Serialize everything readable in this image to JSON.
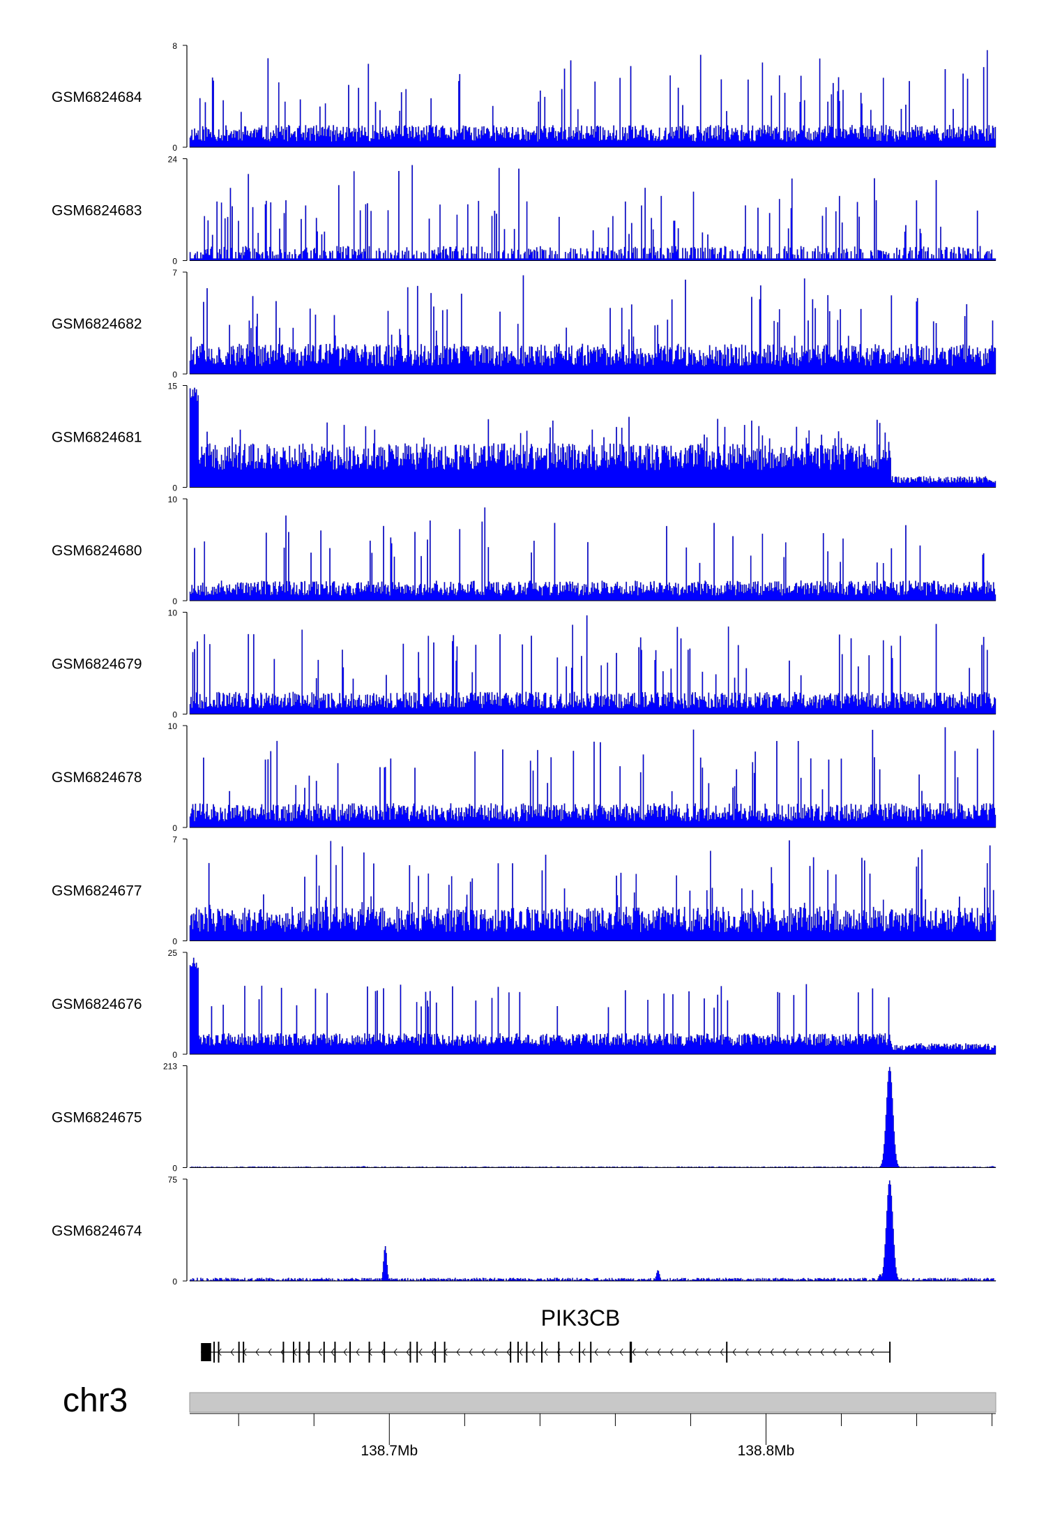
{
  "chart_data": {
    "type": "area",
    "chromosome": "chr3",
    "x_unit": "Mb",
    "xlim": [
      138.647,
      138.861
    ],
    "x_ticks": [
      {
        "value": 138.7,
        "label": "138.7Mb"
      },
      {
        "value": 138.8,
        "label": "138.8Mb"
      }
    ],
    "minor_x_ticks": [
      138.66,
      138.68,
      138.72,
      138.74,
      138.76,
      138.78,
      138.82,
      138.84,
      138.86
    ],
    "color": "#0000ff",
    "outline_color": "#000066",
    "tracks": [
      {
        "name": "GSM6824684",
        "ymax": 8,
        "ymin": 0,
        "pattern": "noisy",
        "fill": 0.22,
        "seed": 11
      },
      {
        "name": "GSM6824683",
        "ymax": 24,
        "ymin": 0,
        "pattern": "sparse",
        "fill": 0.12,
        "seed": 23
      },
      {
        "name": "GSM6824682",
        "ymax": 7,
        "ymin": 0,
        "pattern": "noisy",
        "fill": 0.3,
        "seed": 37
      },
      {
        "name": "GSM6824681",
        "ymax": 15,
        "ymin": 0,
        "pattern": "gene",
        "fill": 0.38,
        "seed": 41
      },
      {
        "name": "GSM6824680",
        "ymax": 10,
        "ymin": 0,
        "pattern": "noisy",
        "fill": 0.2,
        "seed": 53
      },
      {
        "name": "GSM6824679",
        "ymax": 10,
        "ymin": 0,
        "pattern": "noisy",
        "fill": 0.22,
        "seed": 67
      },
      {
        "name": "GSM6824678",
        "ymax": 10,
        "ymin": 0,
        "pattern": "noisy",
        "fill": 0.24,
        "seed": 71
      },
      {
        "name": "GSM6824677",
        "ymax": 7,
        "ymin": 0,
        "pattern": "noisy",
        "fill": 0.34,
        "seed": 83
      },
      {
        "name": "GSM6824676",
        "ymax": 25,
        "ymin": 0,
        "pattern": "gene",
        "fill": 0.18,
        "seed": 97
      },
      {
        "name": "GSM6824675",
        "ymax": 213,
        "ymin": 0,
        "pattern": "peak",
        "fill": 0.01,
        "seed": 101,
        "peaks": [
          {
            "x": 138.8327,
            "y": 213
          },
          {
            "x": 138.6931,
            "y": 3
          },
          {
            "x": 138.7663,
            "y": 2
          },
          {
            "x": 138.86,
            "y": 3
          }
        ]
      },
      {
        "name": "GSM6824674",
        "ymax": 75,
        "ymin": 0,
        "pattern": "peak",
        "fill": 0.03,
        "seed": 113,
        "peaks": [
          {
            "x": 138.8327,
            "y": 75
          },
          {
            "x": 138.6988,
            "y": 26
          },
          {
            "x": 138.7712,
            "y": 8
          },
          {
            "x": 138.8302,
            "y": 5
          }
        ]
      }
    ],
    "gene": {
      "name": "PIK3CB",
      "strand": "-",
      "start": 138.65,
      "end": 138.833,
      "exons": [
        {
          "start": 138.65,
          "end": 138.6527,
          "tall": false
        },
        {
          "start": 138.6533,
          "end": 138.6536,
          "tall": true
        },
        {
          "start": 138.6545,
          "end": 138.6548,
          "tall": true
        },
        {
          "start": 138.6599,
          "end": 138.6602,
          "tall": true
        },
        {
          "start": 138.6611,
          "end": 138.6614,
          "tall": true
        },
        {
          "start": 138.6717,
          "end": 138.672,
          "tall": true
        },
        {
          "start": 138.6744,
          "end": 138.6747,
          "tall": true
        },
        {
          "start": 138.676,
          "end": 138.6763,
          "tall": true
        },
        {
          "start": 138.6785,
          "end": 138.6788,
          "tall": true
        },
        {
          "start": 138.6825,
          "end": 138.6828,
          "tall": true
        },
        {
          "start": 138.6854,
          "end": 138.6857,
          "tall": true
        },
        {
          "start": 138.6894,
          "end": 138.6897,
          "tall": true
        },
        {
          "start": 138.6945,
          "end": 138.6948,
          "tall": true
        },
        {
          "start": 138.6985,
          "end": 138.6988,
          "tall": true
        },
        {
          "start": 138.7054,
          "end": 138.7057,
          "tall": true
        },
        {
          "start": 138.7072,
          "end": 138.7075,
          "tall": true
        },
        {
          "start": 138.712,
          "end": 138.7123,
          "tall": true
        },
        {
          "start": 138.7145,
          "end": 138.7148,
          "tall": true
        },
        {
          "start": 138.732,
          "end": 138.7323,
          "tall": true
        },
        {
          "start": 138.734,
          "end": 138.7343,
          "tall": true
        },
        {
          "start": 138.7363,
          "end": 138.7366,
          "tall": true
        },
        {
          "start": 138.7403,
          "end": 138.7406,
          "tall": true
        },
        {
          "start": 138.7448,
          "end": 138.7451,
          "tall": true
        },
        {
          "start": 138.7503,
          "end": 138.7506,
          "tall": true
        },
        {
          "start": 138.7533,
          "end": 138.7536,
          "tall": true
        },
        {
          "start": 138.7638,
          "end": 138.7644,
          "tall": true
        },
        {
          "start": 138.7894,
          "end": 138.7897,
          "tall": true
        },
        {
          "start": 138.8327,
          "end": 138.833,
          "tall": true
        }
      ]
    }
  }
}
